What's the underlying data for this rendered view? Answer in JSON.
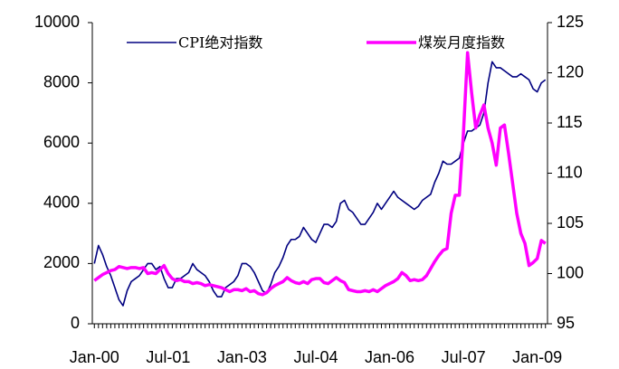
{
  "chart_data": {
    "type": "line",
    "categories": [
      "Jan-00",
      null,
      null,
      null,
      null,
      null,
      null,
      null,
      null,
      null,
      null,
      null,
      null,
      null,
      null,
      null,
      null,
      null,
      "Jul-01",
      null,
      null,
      null,
      null,
      null,
      null,
      null,
      null,
      null,
      null,
      null,
      null,
      null,
      null,
      null,
      null,
      null,
      "Jan-03",
      null,
      null,
      null,
      null,
      null,
      null,
      null,
      null,
      null,
      null,
      null,
      null,
      null,
      null,
      null,
      null,
      null,
      "Jul-04",
      null,
      null,
      null,
      null,
      null,
      null,
      null,
      null,
      null,
      null,
      null,
      null,
      null,
      null,
      null,
      null,
      null,
      "Jan-06",
      null,
      null,
      null,
      null,
      null,
      null,
      null,
      null,
      null,
      null,
      null,
      null,
      null,
      null,
      null,
      null,
      null,
      "Jul-07",
      null,
      null,
      null,
      null,
      null,
      null,
      null,
      null,
      null,
      null,
      null,
      null,
      null,
      null,
      null,
      null,
      null,
      "Jan-09",
      null,
      null
    ],
    "series": [
      {
        "name": "CPI绝对指数",
        "color": "#000080",
        "axis": "y",
        "values": [
          2000,
          2600,
          2300,
          1900,
          1600,
          1200,
          800,
          600,
          1100,
          1400,
          1500,
          1600,
          1800,
          2000,
          2000,
          1800,
          1900,
          1500,
          1200,
          1200,
          1500,
          1500,
          1600,
          1700,
          2000,
          1800,
          1700,
          1600,
          1400,
          1100,
          900,
          900,
          1200,
          1300,
          1400,
          1600,
          2000,
          2000,
          1900,
          1700,
          1400,
          1100,
          1000,
          1300,
          1700,
          1900,
          2200,
          2600,
          2800,
          2800,
          2900,
          3200,
          3000,
          2800,
          2700,
          3000,
          3300,
          3300,
          3200,
          3400,
          4000,
          4100,
          3800,
          3700,
          3500,
          3300,
          3300,
          3500,
          3700,
          4000,
          3800,
          4000,
          4200,
          4400,
          4200,
          4100,
          4000,
          3900,
          3800,
          3900,
          4100,
          4200,
          4300,
          4700,
          5000,
          5400,
          5300,
          5300,
          5400,
          5500,
          6000,
          6400,
          6400,
          6500,
          6600,
          7000,
          8000,
          8700,
          8500,
          8500,
          8400,
          8300,
          8200,
          8200,
          8300,
          8200,
          8100,
          7800,
          7700,
          8000,
          8100
        ]
      },
      {
        "name": "煤炭月度指数",
        "color": "#ff00ff",
        "axis": "y2",
        "values": [
          99.3,
          99.6,
          99.9,
          100.1,
          100.3,
          100.4,
          100.7,
          100.6,
          100.5,
          100.6,
          100.6,
          100.5,
          100.6,
          100.0,
          100.1,
          100.0,
          100.4,
          100.8,
          100.0,
          99.5,
          99.3,
          99.4,
          99.2,
          99.2,
          99.0,
          99.1,
          99.0,
          98.8,
          98.9,
          98.8,
          98.7,
          98.6,
          98.4,
          98.2,
          98.4,
          98.4,
          98.3,
          98.5,
          98.2,
          98.3,
          98.0,
          97.9,
          98.1,
          98.5,
          98.8,
          99.0,
          99.2,
          99.6,
          99.3,
          99.1,
          99.0,
          99.2,
          99.0,
          99.4,
          99.5,
          99.5,
          99.1,
          99.0,
          99.3,
          99.6,
          99.3,
          99.1,
          98.4,
          98.3,
          98.2,
          98.2,
          98.3,
          98.2,
          98.4,
          98.2,
          98.5,
          98.8,
          99.0,
          99.2,
          99.5,
          100.1,
          99.8,
          99.3,
          99.4,
          99.3,
          99.4,
          99.8,
          100.5,
          101.2,
          101.8,
          102.3,
          102.5,
          106.0,
          107.8,
          107.8,
          114.0,
          122.0,
          118.0,
          114.5,
          115.8,
          116.8,
          114.5,
          113.0,
          110.8,
          114.5,
          114.8,
          112.0,
          109.0,
          106.0,
          104.0,
          103.0,
          100.8,
          101.1,
          101.5,
          103.3,
          103.0
        ]
      }
    ],
    "ylim": [
      0,
      10000
    ],
    "yticks": [
      0,
      2000,
      4000,
      6000,
      8000,
      10000
    ],
    "y2lim": [
      95,
      125
    ],
    "y2ticks": [
      95,
      100,
      105,
      110,
      115,
      120,
      125
    ],
    "grid": false,
    "legend": "top"
  }
}
